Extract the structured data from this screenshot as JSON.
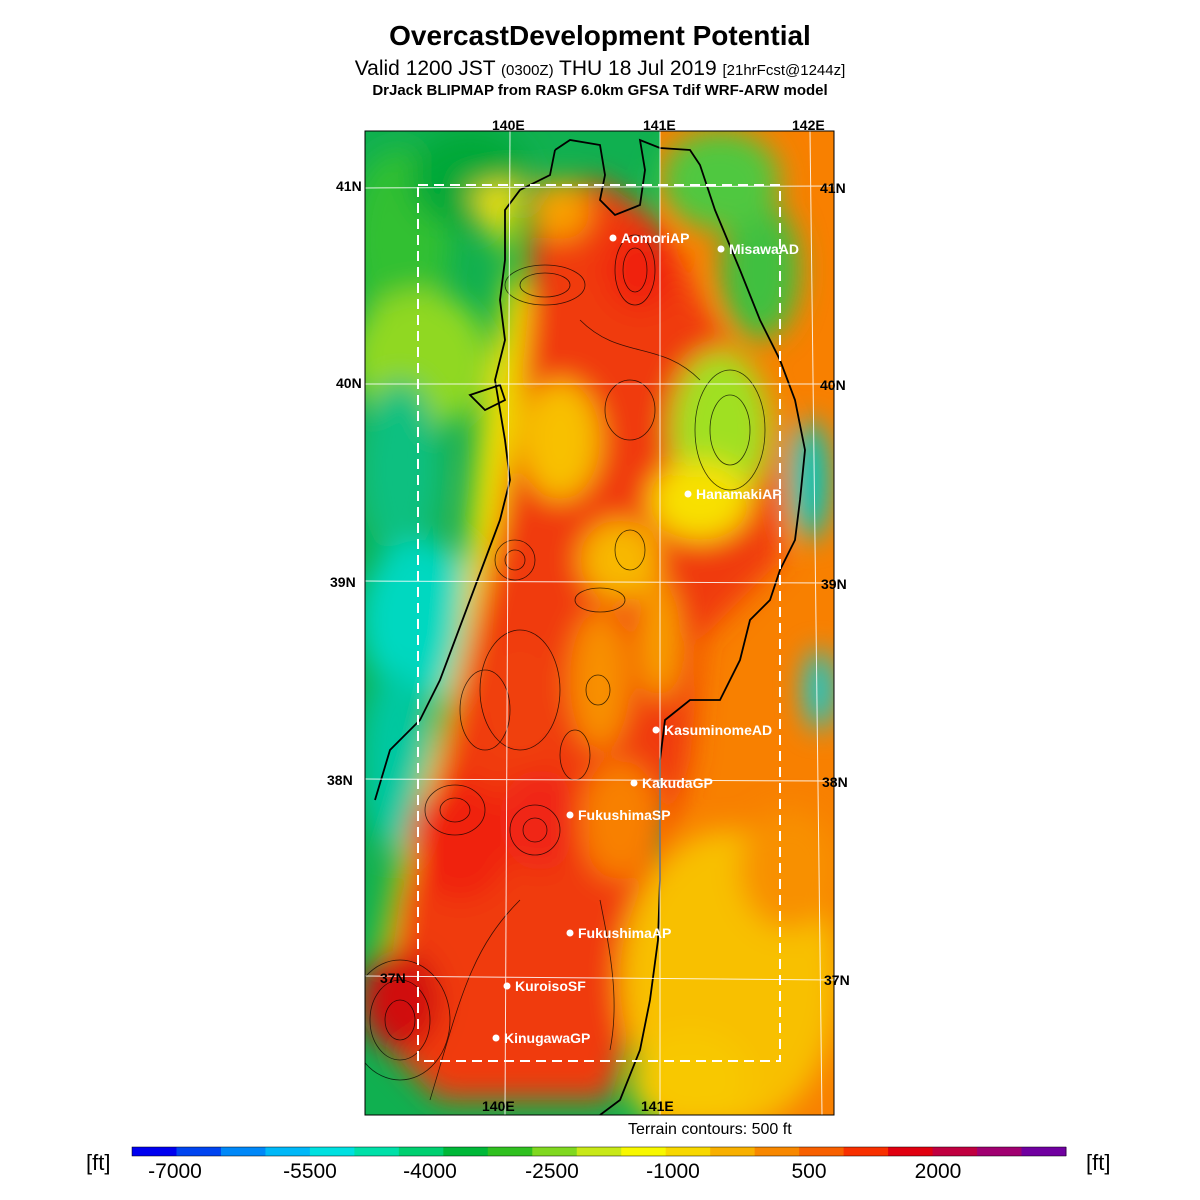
{
  "title": "OvercastDevelopment Potential",
  "subtitle": {
    "valid": "Valid 1200 JST",
    "utc": "(0300Z)",
    "date": "THU 18 Jul 2019",
    "fcst": "[21hrFcst@1244z]"
  },
  "model_line": "DrJack BLIPMAP from RASP 6.0km GFSA Tdif WRF-ARW model",
  "longitude_labels": {
    "top": [
      "140E",
      "141E",
      "142E"
    ],
    "bottom": [
      "140E",
      "141E"
    ]
  },
  "latitude_labels": [
    "41N",
    "40N",
    "39N",
    "38N",
    "37N"
  ],
  "stations": [
    "AomoriAP",
    "MisawaAD",
    "HanamakiAP",
    "KasuminomeAD",
    "KakudaGP",
    "FukushimaSP",
    "FukushimaAP",
    "KuroisoSF",
    "KinugawaGP"
  ],
  "terrain_note": "Terrain contours: 500 ft",
  "colorbar": {
    "unit": "[ft]",
    "tick_labels": [
      "-7000",
      "-5500",
      "-4000",
      "-2500",
      "-1000",
      "500",
      "2000"
    ],
    "colors": [
      "#0000f0",
      "#0044f0",
      "#0088f8",
      "#00b8f8",
      "#00e0e0",
      "#00e0a8",
      "#00d070",
      "#00b838",
      "#30c020",
      "#80d820",
      "#c8e818",
      "#f8f800",
      "#f8d800",
      "#f8b000",
      "#f88800",
      "#f86000",
      "#f83000",
      "#e00010",
      "#c00040",
      "#a00070",
      "#7000a0"
    ],
    "accent_colors": {
      "ocean_west": "#00c070",
      "land_core": "#f03010",
      "ocean_east": "#f88000"
    }
  }
}
